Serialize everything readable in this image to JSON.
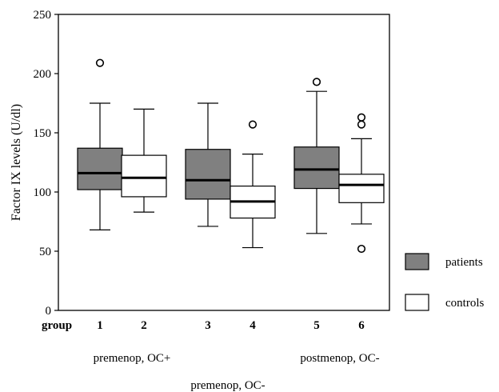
{
  "chart_data": {
    "type": "box",
    "ylabel": "Factor IX levels (U/dl)",
    "ylim": [
      0,
      250
    ],
    "yticks": [
      0,
      50,
      100,
      150,
      200,
      250
    ],
    "x_axis_label": "group",
    "boxes": [
      {
        "group": "1",
        "series": "patients",
        "whisker_low": 68,
        "q1": 102,
        "median": 116,
        "q3": 137,
        "whisker_high": 175,
        "outliers": [
          209
        ]
      },
      {
        "group": "2",
        "series": "controls",
        "whisker_low": 83,
        "q1": 96,
        "median": 112,
        "q3": 131,
        "whisker_high": 170,
        "outliers": []
      },
      {
        "group": "3",
        "series": "patients",
        "whisker_low": 71,
        "q1": 94,
        "median": 110,
        "q3": 136,
        "whisker_high": 175,
        "outliers": []
      },
      {
        "group": "4",
        "series": "controls",
        "whisker_low": 53,
        "q1": 78,
        "median": 92,
        "q3": 105,
        "whisker_high": 132,
        "outliers": [
          157
        ]
      },
      {
        "group": "5",
        "series": "patients",
        "whisker_low": 65,
        "q1": 103,
        "median": 119,
        "q3": 138,
        "whisker_high": 185,
        "outliers": [
          193
        ]
      },
      {
        "group": "6",
        "series": "controls",
        "whisker_low": 73,
        "q1": 91,
        "median": 106,
        "q3": 115,
        "whisker_high": 145,
        "outliers": [
          163,
          157,
          52
        ]
      }
    ],
    "conditions": [
      "premenop, OC+",
      "premenop, OC-",
      "postmenop, OC-"
    ],
    "legend": [
      {
        "name": "patients",
        "color": "#808080"
      },
      {
        "name": "controls",
        "color": "#ffffff"
      }
    ]
  }
}
